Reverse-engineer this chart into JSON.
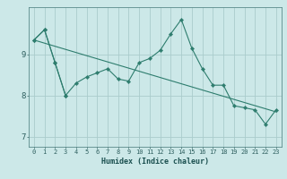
{
  "xlabel": "Humidex (Indice chaleur)",
  "bg_color": "#cce8e8",
  "grid_color": "#aacccc",
  "line_color": "#2e7d6e",
  "x_values": [
    0,
    1,
    2,
    3,
    4,
    5,
    6,
    7,
    8,
    9,
    10,
    11,
    12,
    13,
    14,
    15,
    16,
    17,
    18,
    19,
    20,
    21,
    22,
    23
  ],
  "line1_y": [
    9.35,
    9.6,
    8.8,
    8.0,
    8.3,
    8.45,
    8.55,
    8.65,
    8.4,
    8.35,
    8.8,
    8.9,
    9.1,
    9.5,
    9.85,
    9.15,
    8.65,
    8.25,
    8.25,
    7.75,
    7.7,
    7.65,
    7.3,
    7.65
  ],
  "trend_x": [
    0,
    23
  ],
  "trend_y": [
    9.35,
    7.6
  ],
  "ylim": [
    6.75,
    10.15
  ],
  "yticks": [
    7,
    8,
    9
  ],
  "xticks": [
    0,
    1,
    2,
    3,
    4,
    5,
    6,
    7,
    8,
    9,
    10,
    11,
    12,
    13,
    14,
    15,
    16,
    17,
    18,
    19,
    20,
    21,
    22,
    23
  ],
  "xlabel_fontsize": 6.0,
  "tick_fontsize": 5.0,
  "ytick_fontsize": 6.5
}
